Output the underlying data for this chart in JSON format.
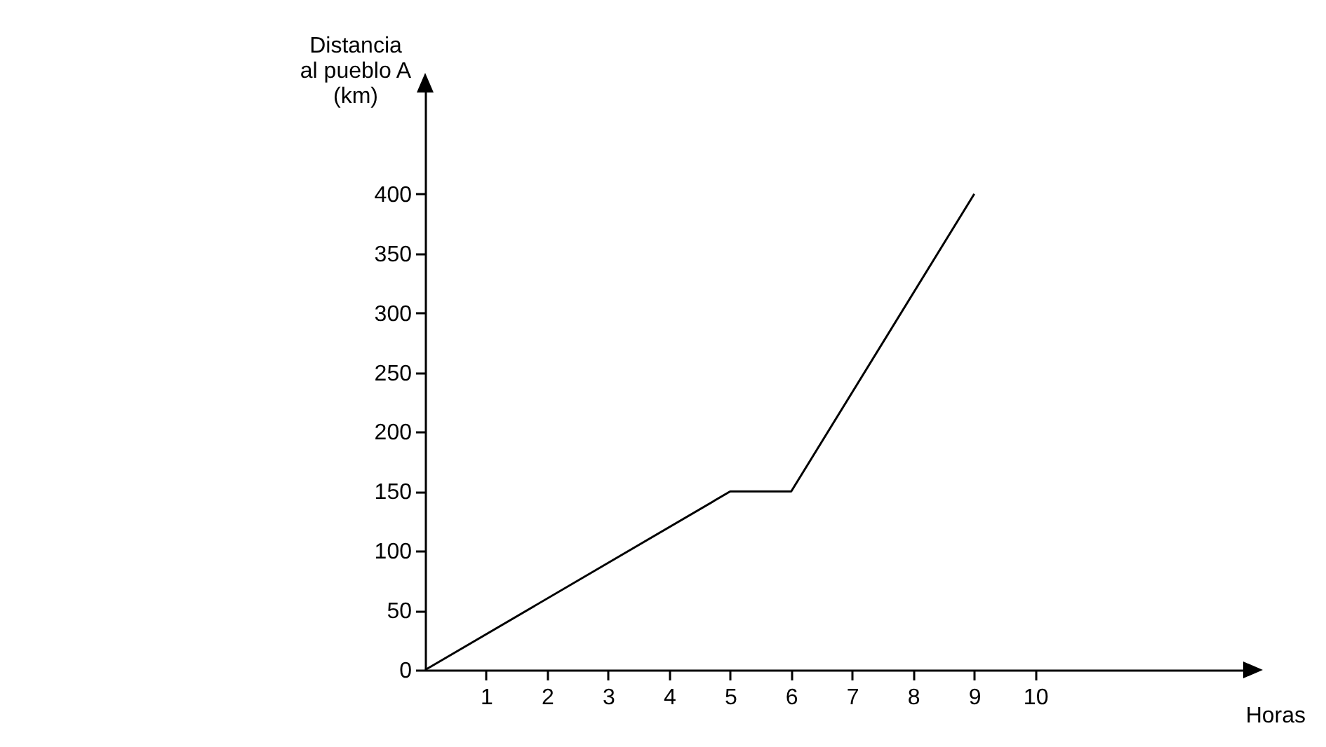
{
  "chart_data": {
    "type": "line",
    "xlabel": "Horas",
    "ylabel": "Distancia al pueblo A (km)",
    "x": [
      0,
      5,
      6,
      9
    ],
    "series": [
      {
        "color": "#000000",
        "values": [
          0,
          150,
          150,
          400
        ]
      }
    ],
    "xlim": [
      0,
      13.5
    ],
    "xticks": [
      1,
      2,
      3,
      4,
      5,
      6,
      7,
      8,
      9,
      10
    ],
    "ylim": [
      0,
      490
    ],
    "yticks": [
      0,
      50,
      100,
      150,
      200,
      250,
      300,
      350,
      400
    ],
    "grid": false,
    "marker": "none",
    "line_style": "solid"
  }
}
